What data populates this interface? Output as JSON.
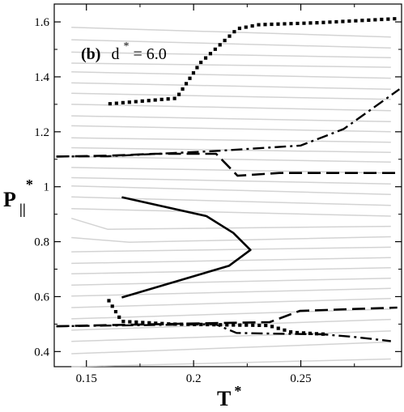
{
  "chart_data": {
    "type": "line",
    "annotation": {
      "prefix": "(b)",
      "symbol": "d",
      "superscript": "*",
      "value_text": " = 6.0"
    },
    "xlabel": {
      "main": "T",
      "sup": "*"
    },
    "ylabel": {
      "main": "P",
      "sub": "||",
      "sup": "*"
    },
    "xlim": [
      0.135,
      0.297
    ],
    "ylim": [
      0.345,
      1.665
    ],
    "x_ticks": [
      0.15,
      0.2,
      0.25
    ],
    "x_tick_labels": [
      "0.15",
      "0.2",
      "0.25"
    ],
    "y_ticks": [
      0.4,
      0.6,
      0.8,
      1.0,
      1.2,
      1.4,
      1.6
    ],
    "y_tick_labels": [
      "0.4",
      "0.6",
      "0.8",
      "1",
      "1.2",
      "1.4",
      "1.6"
    ],
    "grid": false,
    "isotherms": {
      "color": "#d3d3d3",
      "lines": [
        [
          [
            0.143,
            0.333
          ],
          [
            0.292,
            0.373
          ]
        ],
        [
          [
            0.143,
            0.392
          ],
          [
            0.292,
            0.435
          ]
        ],
        [
          [
            0.143,
            0.437
          ],
          [
            0.292,
            0.475
          ]
        ],
        [
          [
            0.143,
            0.478
          ],
          [
            0.292,
            0.517
          ]
        ],
        [
          [
            0.143,
            0.519
          ],
          [
            0.292,
            0.555
          ]
        ],
        [
          [
            0.143,
            0.56
          ],
          [
            0.292,
            0.593
          ]
        ],
        [
          [
            0.143,
            0.602
          ],
          [
            0.292,
            0.63
          ]
        ],
        [
          [
            0.143,
            0.642
          ],
          [
            0.292,
            0.667
          ]
        ],
        [
          [
            0.143,
            0.683
          ],
          [
            0.292,
            0.705
          ]
        ],
        [
          [
            0.143,
            0.721
          ],
          [
            0.292,
            0.742
          ]
        ],
        [
          [
            0.143,
            0.763
          ],
          [
            0.292,
            0.78
          ]
        ],
        [
          [
            0.143,
            0.815
          ],
          [
            0.17,
            0.798
          ],
          [
            0.292,
            0.818
          ]
        ],
        [
          [
            0.143,
            0.885
          ],
          [
            0.16,
            0.845
          ],
          [
            0.292,
            0.856
          ]
        ],
        [
          [
            0.143,
            0.92
          ],
          [
            0.292,
            0.893
          ]
        ],
        [
          [
            0.143,
            0.963
          ],
          [
            0.292,
            0.932
          ]
        ],
        [
          [
            0.143,
            1.003
          ],
          [
            0.292,
            0.972
          ]
        ],
        [
          [
            0.143,
            1.033
          ],
          [
            0.292,
            1.01
          ]
        ],
        [
          [
            0.143,
            1.07
          ],
          [
            0.292,
            1.05
          ]
        ],
        [
          [
            0.143,
            1.11
          ],
          [
            0.292,
            1.09
          ]
        ],
        [
          [
            0.143,
            1.142
          ],
          [
            0.292,
            1.125
          ]
        ],
        [
          [
            0.143,
            1.178
          ],
          [
            0.292,
            1.162
          ]
        ],
        [
          [
            0.143,
            1.222
          ],
          [
            0.292,
            1.2
          ]
        ],
        [
          [
            0.143,
            1.258
          ],
          [
            0.292,
            1.237
          ]
        ],
        [
          [
            0.143,
            1.3
          ],
          [
            0.292,
            1.277
          ]
        ],
        [
          [
            0.143,
            1.34
          ],
          [
            0.292,
            1.318
          ]
        ],
        [
          [
            0.143,
            1.378
          ],
          [
            0.292,
            1.355
          ]
        ],
        [
          [
            0.143,
            1.418
          ],
          [
            0.292,
            1.395
          ]
        ],
        [
          [
            0.143,
            1.45
          ],
          [
            0.292,
            1.435
          ]
        ],
        [
          [
            0.143,
            1.49
          ],
          [
            0.292,
            1.47
          ]
        ],
        [
          [
            0.143,
            1.535
          ],
          [
            0.292,
            1.505
          ]
        ],
        [
          [
            0.143,
            1.58
          ],
          [
            0.292,
            1.545
          ]
        ]
      ]
    },
    "series": [
      {
        "style": "solid",
        "points": [
          [
            0.1665,
            0.962
          ],
          [
            0.206,
            0.893
          ],
          [
            0.2185,
            0.832
          ],
          [
            0.2265,
            0.77
          ],
          [
            0.2165,
            0.712
          ],
          [
            0.1665,
            0.597
          ]
        ]
      },
      {
        "style": "dotted",
        "points": [
          [
            0.161,
            1.302
          ],
          [
            0.192,
            1.322
          ],
          [
            0.203,
            1.45
          ],
          [
            0.2205,
            1.575
          ],
          [
            0.2305,
            1.59
          ],
          [
            0.258,
            1.597
          ],
          [
            0.295,
            1.612
          ]
        ]
      },
      {
        "style": "dash-dot",
        "points": [
          [
            0.136,
            1.11
          ],
          [
            0.16,
            1.111
          ],
          [
            0.21,
            1.13
          ],
          [
            0.25,
            1.15
          ],
          [
            0.27,
            1.21
          ],
          [
            0.296,
            1.355
          ]
        ]
      },
      {
        "style": "dashed",
        "points": [
          [
            0.136,
            1.11
          ],
          [
            0.161,
            1.113
          ],
          [
            0.182,
            1.12
          ],
          [
            0.2105,
            1.12
          ],
          [
            0.2205,
            1.04
          ],
          [
            0.24,
            1.05
          ],
          [
            0.296,
            1.05
          ]
        ]
      },
      {
        "style": "dashed",
        "points": [
          [
            0.136,
            0.492
          ],
          [
            0.165,
            0.497
          ],
          [
            0.205,
            0.503
          ],
          [
            0.2355,
            0.507
          ],
          [
            0.2495,
            0.548
          ],
          [
            0.275,
            0.555
          ],
          [
            0.295,
            0.56
          ]
        ]
      },
      {
        "style": "dash-dot",
        "points": [
          [
            0.136,
            0.492
          ],
          [
            0.165,
            0.495
          ],
          [
            0.21,
            0.5
          ],
          [
            0.22,
            0.468
          ],
          [
            0.24,
            0.465
          ],
          [
            0.26,
            0.463
          ],
          [
            0.275,
            0.453
          ],
          [
            0.292,
            0.438
          ]
        ]
      },
      {
        "style": "dotted",
        "points": [
          [
            0.1605,
            0.585
          ],
          [
            0.1665,
            0.51
          ],
          [
            0.19,
            0.5
          ],
          [
            0.235,
            0.495
          ],
          [
            0.246,
            0.47
          ],
          [
            0.262,
            0.463
          ]
        ]
      }
    ]
  }
}
